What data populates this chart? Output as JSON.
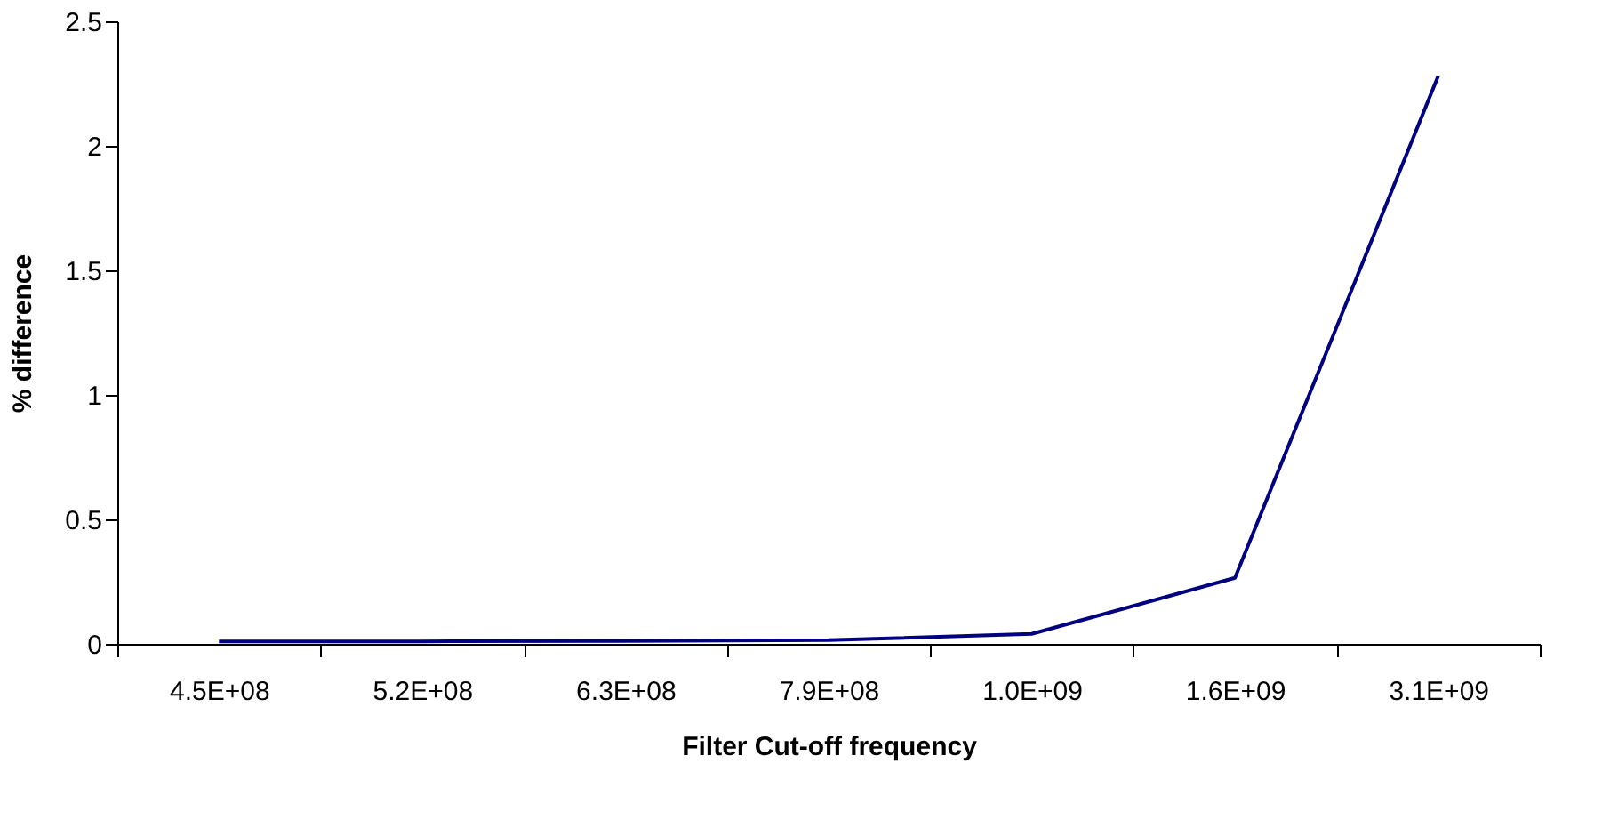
{
  "chart_data": {
    "type": "line",
    "xlabel": "Filter Cut-off frequency",
    "ylabel": "% difference",
    "categories": [
      "4.5E+08",
      "5.2E+08",
      "6.3E+08",
      "7.9E+08",
      "1.0E+09",
      "1.6E+09",
      "3.1E+09"
    ],
    "series": [
      {
        "color": "#000080",
        "values": [
          0.01,
          0.01,
          0.012,
          0.015,
          0.04,
          0.265,
          2.28
        ]
      }
    ],
    "ylim": [
      0,
      2.5
    ],
    "yticks": [
      0,
      0.5,
      1,
      1.5,
      2,
      2.5
    ],
    "grid": false,
    "legend": false,
    "marker": "none",
    "line_style": "solid"
  }
}
